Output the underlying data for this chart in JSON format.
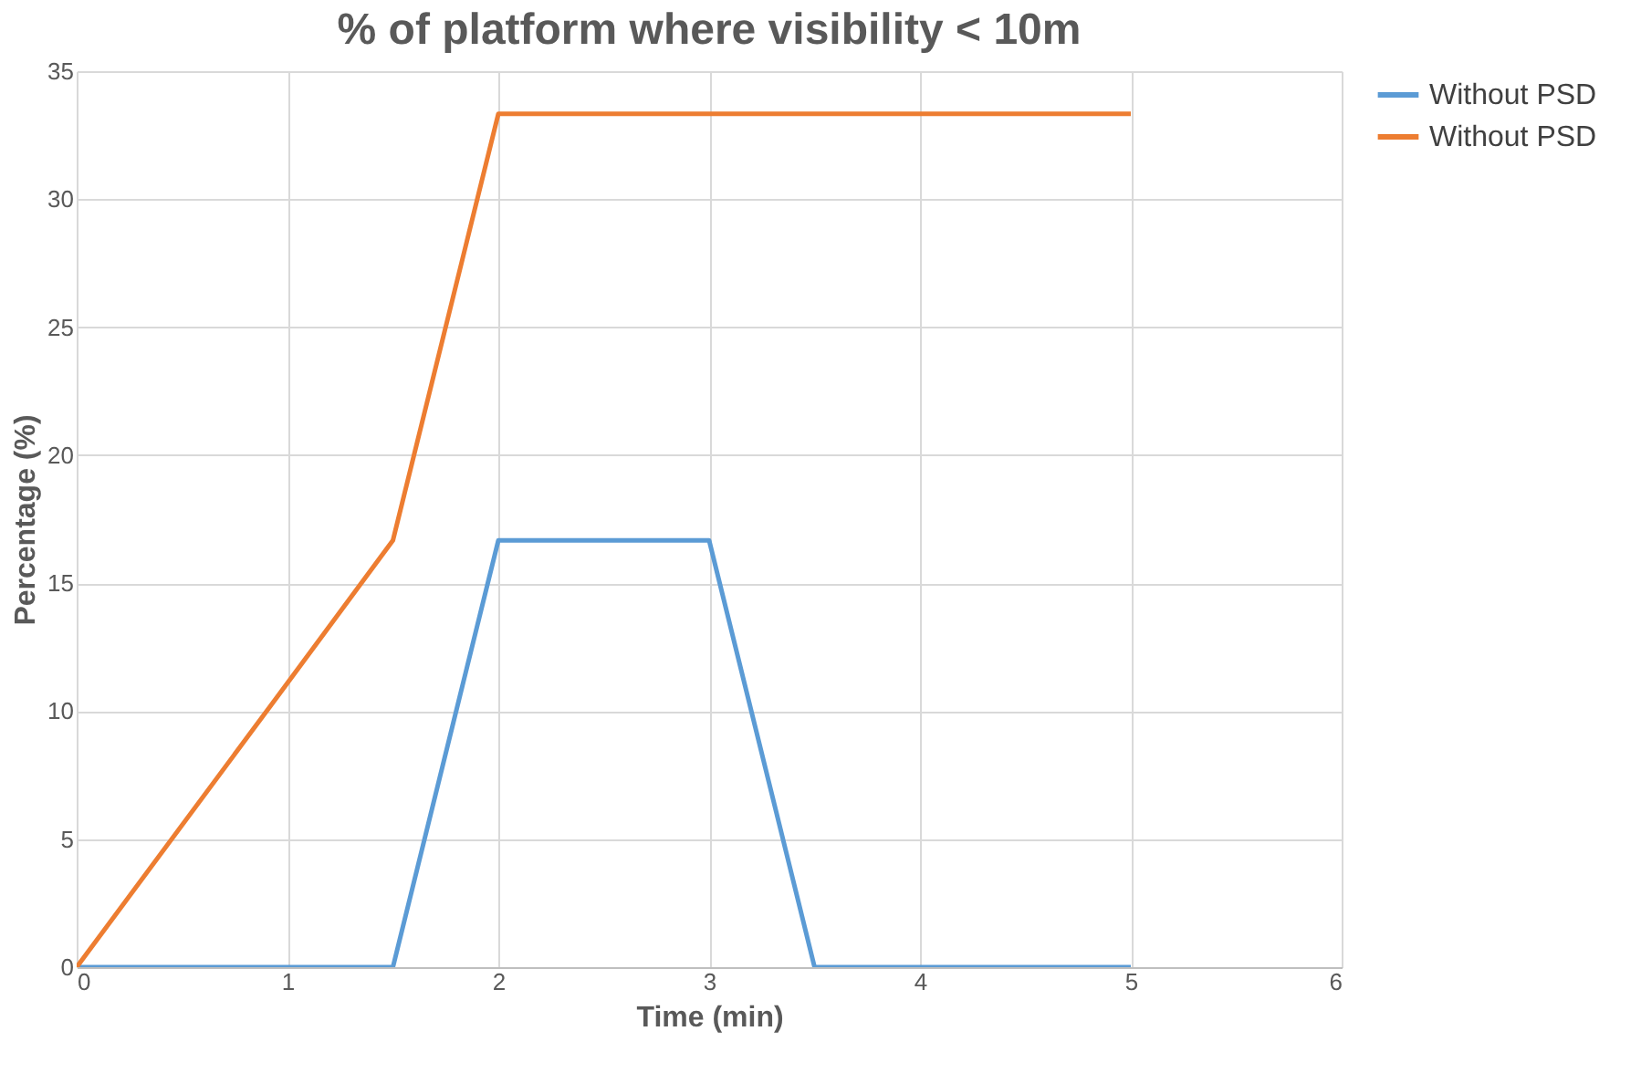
{
  "chart_data": {
    "type": "line",
    "title": "% of platform where visibility < 10m",
    "xlabel": "Time (min)",
    "ylabel": "Percentage (%)",
    "series": [
      {
        "name": "Without PSD",
        "color": "#5b9bd5",
        "x": [
          0,
          0.5,
          1,
          1.5,
          2,
          2.5,
          3,
          3.5,
          4,
          4.5,
          5
        ],
        "values": [
          0,
          0,
          0,
          0,
          16.67,
          16.67,
          16.67,
          0,
          0,
          0,
          0
        ]
      },
      {
        "name": "Without PSD",
        "color": "#ed7d31",
        "x": [
          0,
          1,
          1.5,
          2,
          2.5,
          3,
          3.5,
          4,
          4.5,
          5
        ],
        "values": [
          0,
          11.1,
          16.67,
          33.33,
          33.33,
          33.33,
          33.33,
          33.33,
          33.33,
          33.33
        ]
      }
    ],
    "xlim": [
      0,
      6
    ],
    "xticks": [
      0,
      1,
      2,
      3,
      4,
      5,
      6
    ],
    "ylim": [
      0,
      35
    ],
    "yticks": [
      0,
      5,
      10,
      15,
      20,
      25,
      30,
      35
    ],
    "grid": true,
    "legend": "right",
    "marker": "none",
    "line_style": "solid"
  }
}
